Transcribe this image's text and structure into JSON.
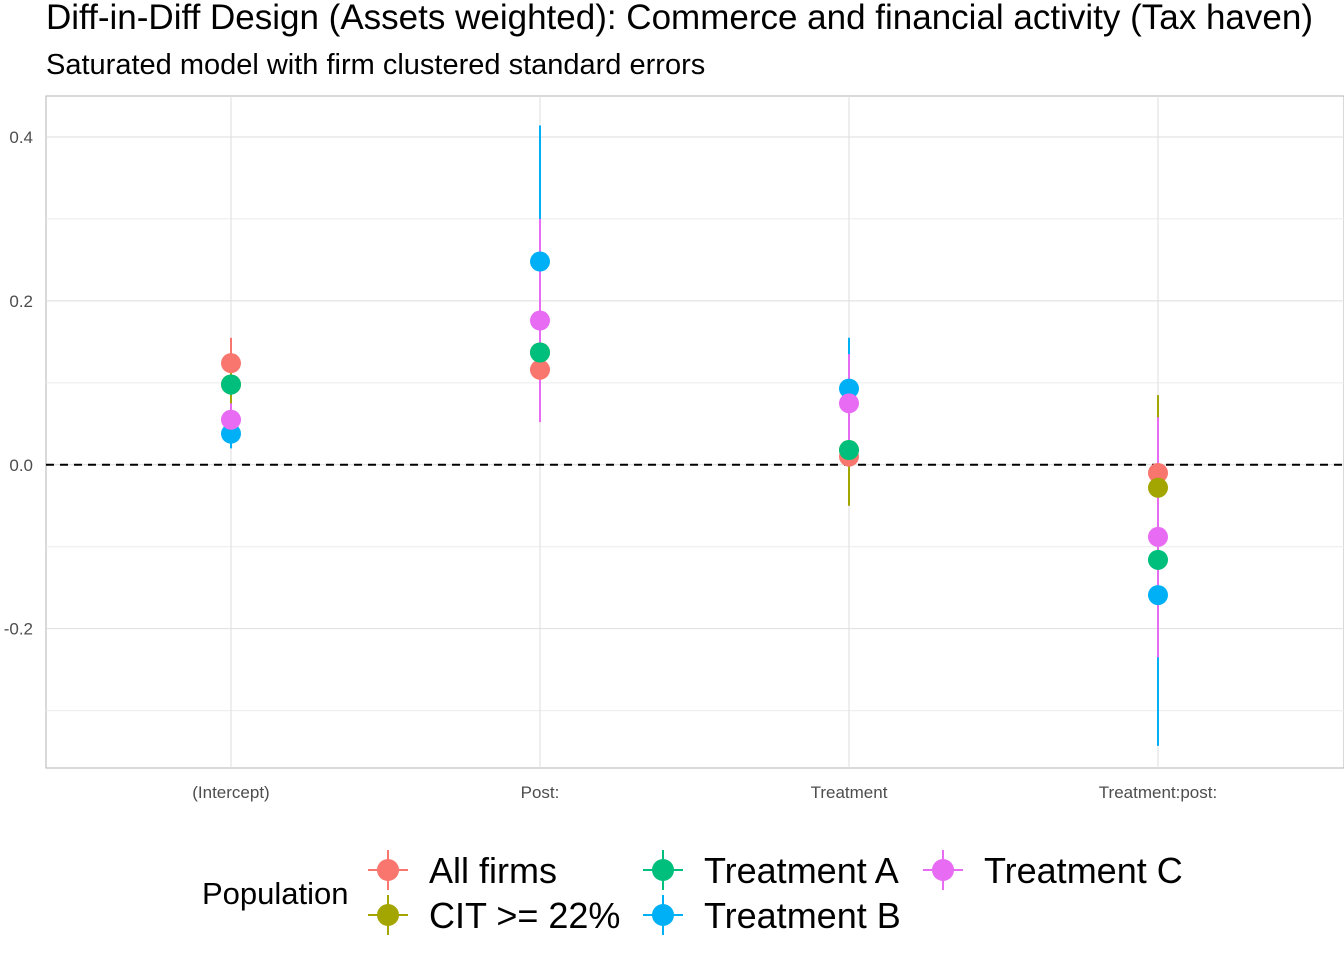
{
  "chart_data": {
    "type": "scatter",
    "title": "Diff-in-Diff Design (Assets weighted): Commerce and financial activity (Tax haven)",
    "subtitle": "Saturated model with firm clustered standard errors",
    "xlabel": "",
    "ylabel": "",
    "categories": [
      "(Intercept)",
      "Post:",
      "Treatment",
      "Treatment:post:"
    ],
    "ylim": [
      -0.37,
      0.45
    ],
    "yticks": [
      0.4,
      0.2,
      0.0,
      -0.2
    ],
    "ytick_labels": [
      "0.4",
      "0.2",
      "0.0",
      "-0.2"
    ],
    "reference_line": 0,
    "grid": true,
    "legend": {
      "title": "Population",
      "position": "bottom",
      "entries": [
        "All firms",
        "CIT >= 22%",
        "Treatment A",
        "Treatment B",
        "Treatment C"
      ]
    },
    "series": [
      {
        "name": "All firms",
        "color": "#F8766D",
        "values": [
          0.124,
          0.116,
          0.01,
          -0.01
        ],
        "lower": [
          0.094,
          0.086,
          -0.01,
          -0.025
        ],
        "upper": [
          0.155,
          0.146,
          0.03,
          0.006
        ]
      },
      {
        "name": "CIT >= 22%",
        "color": "#A3A500",
        "values": [
          0.098,
          0.137,
          0.018,
          -0.028
        ],
        "lower": [
          0.072,
          0.09,
          -0.05,
          -0.14
        ],
        "upper": [
          0.124,
          0.184,
          0.086,
          0.085
        ]
      },
      {
        "name": "Treatment A",
        "color": "#00BF7D",
        "values": [
          0.098,
          0.137,
          0.018,
          -0.116
        ],
        "lower": [
          0.085,
          0.12,
          0.0,
          -0.14
        ],
        "upper": [
          0.11,
          0.154,
          0.036,
          -0.092
        ]
      },
      {
        "name": "Treatment B",
        "color": "#00B0F6",
        "values": [
          0.038,
          0.248,
          0.093,
          -0.159
        ],
        "lower": [
          0.02,
          0.085,
          0.032,
          -0.343
        ],
        "upper": [
          0.056,
          0.414,
          0.155,
          0.025
        ]
      },
      {
        "name": "Treatment C",
        "color": "#E76BF3",
        "values": [
          0.055,
          0.176,
          0.075,
          -0.088
        ],
        "lower": [
          0.035,
          0.052,
          0.015,
          -0.235
        ],
        "upper": [
          0.075,
          0.3,
          0.135,
          0.058
        ]
      }
    ]
  }
}
